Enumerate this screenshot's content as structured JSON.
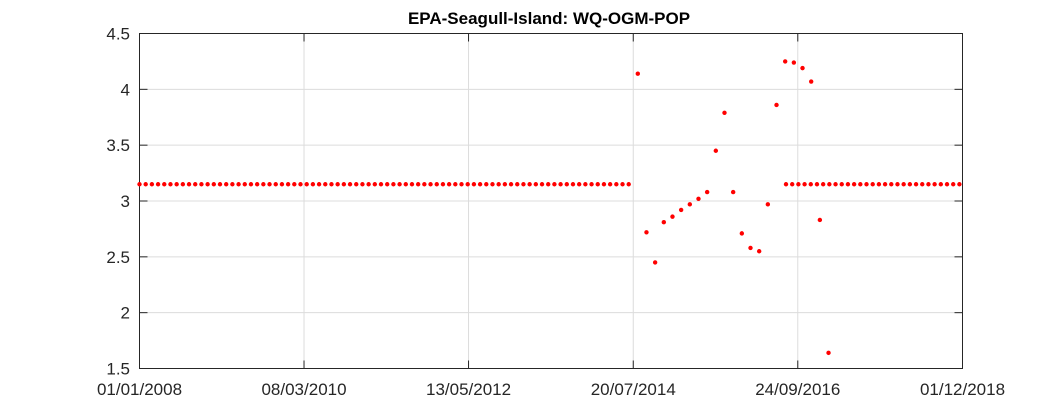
{
  "chart_data": {
    "type": "scatter",
    "title": "EPA-Seagull-Island: WQ-OGM-POP",
    "xlabel": "",
    "ylabel": "",
    "x_axis_type": "date",
    "xlim": [
      "2008-01-01",
      "2018-12-01"
    ],
    "ylim": [
      1.5,
      4.5
    ],
    "x_ticks": [
      "2008-01-01",
      "2010-03-08",
      "2012-05-13",
      "2014-07-20",
      "2016-09-24",
      "2018-12-01"
    ],
    "x_tick_labels": [
      "01/01/2008",
      "08/03/2010",
      "13/05/2012",
      "20/07/2014",
      "24/09/2016",
      "01/12/2018"
    ],
    "y_ticks": [
      1.5,
      2,
      2.5,
      3,
      3.5,
      4,
      4.5
    ],
    "y_tick_labels": [
      "1.5",
      "2",
      "2.5",
      "3",
      "3.5",
      "4",
      "4.5"
    ],
    "grid": true,
    "marker_color": "#ff0000",
    "series": [
      {
        "constant_segments": [
          {
            "start": "2008-01-01",
            "end": "2014-07-10",
            "step_days": 30,
            "y": 3.15
          },
          {
            "start": "2016-07-29",
            "end": "2018-12-01",
            "step_days": 30,
            "y": 3.15
          }
        ],
        "points": [
          {
            "x": "2014-08-11",
            "y": 4.14
          },
          {
            "x": "2014-09-22",
            "y": 2.72
          },
          {
            "x": "2014-11-03",
            "y": 2.45
          },
          {
            "x": "2014-12-15",
            "y": 2.81
          },
          {
            "x": "2015-01-26",
            "y": 2.86
          },
          {
            "x": "2015-03-09",
            "y": 2.92
          },
          {
            "x": "2015-04-20",
            "y": 2.97
          },
          {
            "x": "2015-06-01",
            "y": 3.02
          },
          {
            "x": "2015-07-13",
            "y": 3.08
          },
          {
            "x": "2015-08-24",
            "y": 3.45
          },
          {
            "x": "2015-10-05",
            "y": 3.79
          },
          {
            "x": "2015-11-16",
            "y": 3.08
          },
          {
            "x": "2015-12-28",
            "y": 2.71
          },
          {
            "x": "2016-02-08",
            "y": 2.58
          },
          {
            "x": "2016-03-21",
            "y": 2.55
          },
          {
            "x": "2016-05-02",
            "y": 2.97
          },
          {
            "x": "2016-06-13",
            "y": 3.86
          },
          {
            "x": "2016-07-25",
            "y": 4.25
          },
          {
            "x": "2016-09-05",
            "y": 4.24
          },
          {
            "x": "2016-10-17",
            "y": 4.19
          },
          {
            "x": "2016-11-28",
            "y": 4.07
          },
          {
            "x": "2017-01-09",
            "y": 2.83
          },
          {
            "x": "2017-02-20",
            "y": 1.64
          }
        ]
      }
    ]
  }
}
